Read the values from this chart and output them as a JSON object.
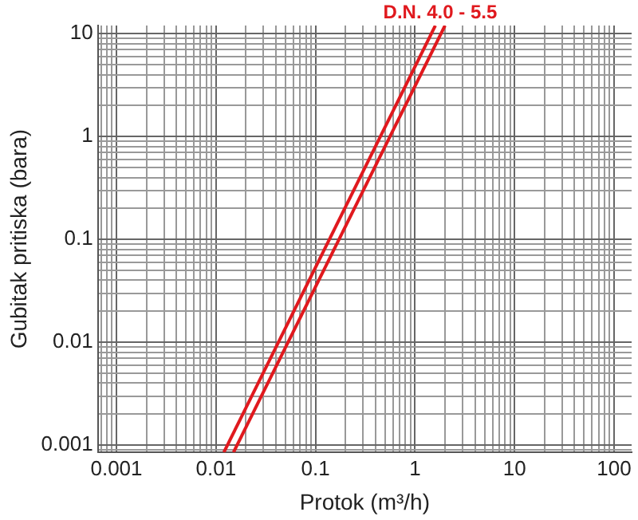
{
  "chart_data": {
    "type": "line",
    "xlabel": "Protok (m³/h)",
    "ylabel": "Gubitak pritiska (bara)",
    "log": "xy",
    "grid": true,
    "legend": false,
    "marker": "none",
    "line_style": "solid",
    "xlim": [
      0.00065,
      150
    ],
    "ylim": [
      0.00085,
      12
    ],
    "xticks": [
      {
        "value": 0.0007,
        "label": null
      },
      {
        "value": 0.0008,
        "label": null
      },
      {
        "value": 0.0009,
        "label": null
      },
      0.001,
      {
        "value": 0.002,
        "label": null
      },
      {
        "value": 0.003,
        "label": null
      },
      {
        "value": 0.004,
        "label": null
      },
      {
        "value": 0.005,
        "label": null
      },
      {
        "value": 0.006,
        "label": null
      },
      {
        "value": 0.007,
        "label": null
      },
      {
        "value": 0.008,
        "label": null
      },
      {
        "value": 0.009,
        "label": null
      },
      0.01,
      {
        "value": 0.02,
        "label": null
      },
      {
        "value": 0.03,
        "label": null
      },
      {
        "value": 0.04,
        "label": null
      },
      {
        "value": 0.05,
        "label": null
      },
      {
        "value": 0.06,
        "label": null
      },
      {
        "value": 0.07,
        "label": null
      },
      {
        "value": 0.08,
        "label": null
      },
      {
        "value": 0.09,
        "label": null
      },
      0.1,
      {
        "value": 0.2,
        "label": null
      },
      {
        "value": 0.3,
        "label": null
      },
      {
        "value": 0.4,
        "label": null
      },
      {
        "value": 0.5,
        "label": null
      },
      {
        "value": 0.6,
        "label": null
      },
      {
        "value": 0.7,
        "label": null
      },
      {
        "value": 0.8,
        "label": null
      },
      {
        "value": 0.9,
        "label": null
      },
      1,
      {
        "value": 2,
        "label": null
      },
      {
        "value": 3,
        "label": null
      },
      {
        "value": 4,
        "label": null
      },
      {
        "value": 5,
        "label": null
      },
      {
        "value": 6,
        "label": null
      },
      {
        "value": 7,
        "label": null
      },
      {
        "value": 8,
        "label": null
      },
      {
        "value": 9,
        "label": null
      },
      10,
      {
        "value": 20,
        "label": null
      },
      {
        "value": 30,
        "label": null
      },
      {
        "value": 40,
        "label": null
      },
      {
        "value": 50,
        "label": null
      },
      {
        "value": 60,
        "label": null
      },
      {
        "value": 70,
        "label": null
      },
      {
        "value": 80,
        "label": null
      },
      {
        "value": 90,
        "label": null
      },
      100
    ],
    "yticks": [
      {
        "value": 0.0009,
        "label": null
      },
      0.001,
      {
        "value": 0.002,
        "label": null
      },
      {
        "value": 0.003,
        "label": null
      },
      {
        "value": 0.004,
        "label": null
      },
      {
        "value": 0.005,
        "label": null
      },
      {
        "value": 0.006,
        "label": null
      },
      {
        "value": 0.007,
        "label": null
      },
      {
        "value": 0.008,
        "label": null
      },
      {
        "value": 0.009,
        "label": null
      },
      0.01,
      {
        "value": 0.02,
        "label": null
      },
      {
        "value": 0.03,
        "label": null
      },
      {
        "value": 0.04,
        "label": null
      },
      {
        "value": 0.05,
        "label": null
      },
      {
        "value": 0.06,
        "label": null
      },
      {
        "value": 0.07,
        "label": null
      },
      {
        "value": 0.08,
        "label": null
      },
      {
        "value": 0.09,
        "label": null
      },
      0.1,
      {
        "value": 0.2,
        "label": null
      },
      {
        "value": 0.3,
        "label": null
      },
      {
        "value": 0.4,
        "label": null
      },
      {
        "value": 0.5,
        "label": null
      },
      {
        "value": 0.6,
        "label": null
      },
      {
        "value": 0.7,
        "label": null
      },
      {
        "value": 0.8,
        "label": null
      },
      {
        "value": 0.9,
        "label": null
      },
      1,
      {
        "value": 2,
        "label": null
      },
      {
        "value": 3,
        "label": null
      },
      {
        "value": 4,
        "label": null
      },
      {
        "value": 5,
        "label": null
      },
      {
        "value": 6,
        "label": null
      },
      {
        "value": 7,
        "label": null
      },
      {
        "value": 8,
        "label": null
      },
      {
        "value": 9,
        "label": null
      },
      10
    ],
    "series": [
      {
        "color": "#e0191e",
        "x": [
          0.012,
          1.6
        ],
        "values": [
          0.00085,
          12
        ]
      },
      {
        "color": "#e0191e",
        "x": [
          0.015,
          2.0
        ],
        "values": [
          0.00085,
          12
        ]
      }
    ],
    "annotations": [
      "D.N. 4.0 - 5.5"
    ]
  }
}
